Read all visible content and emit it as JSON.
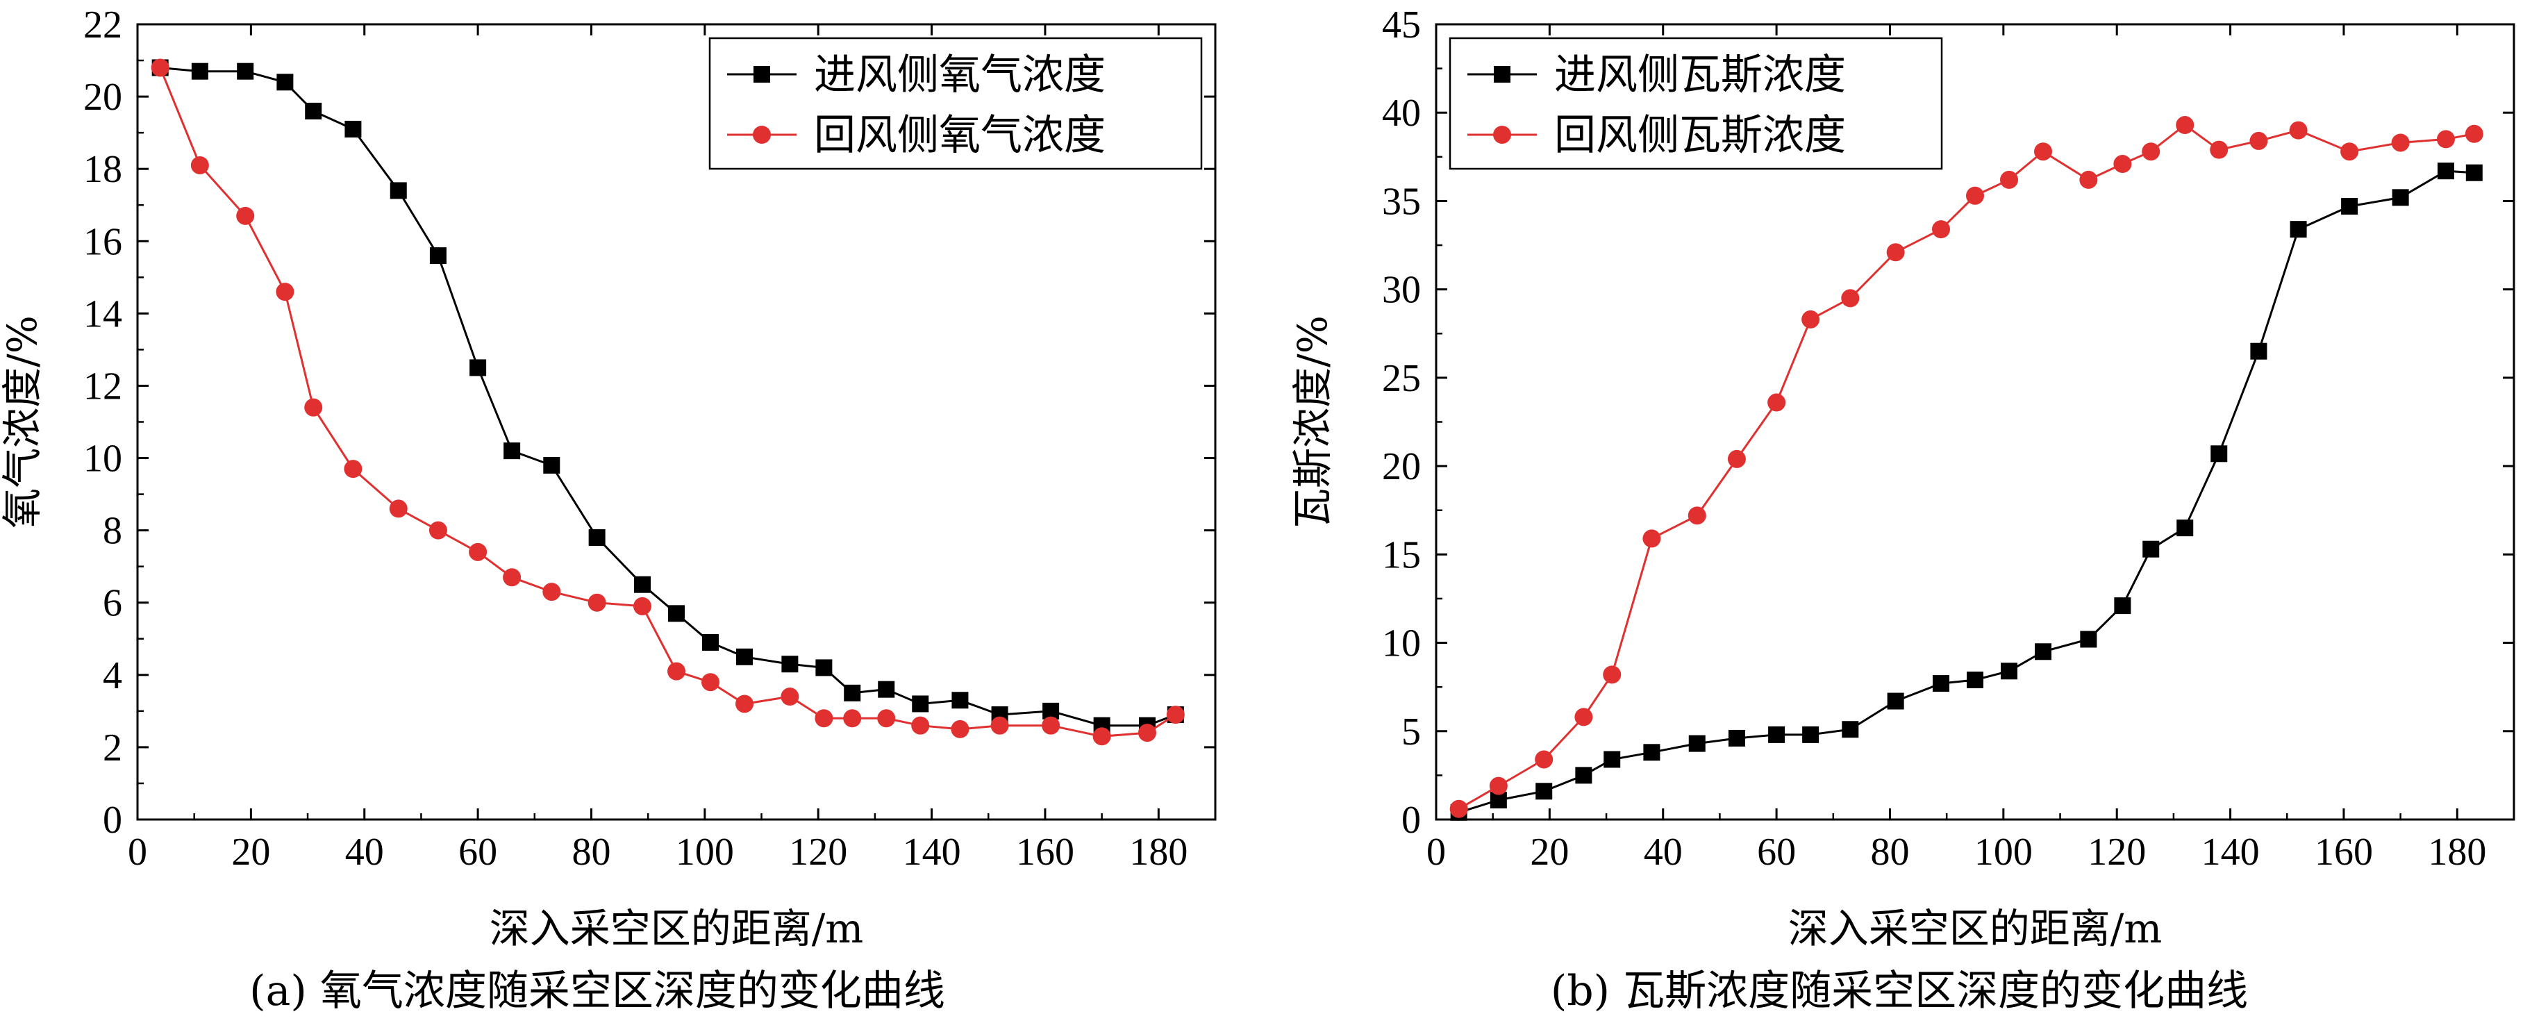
{
  "chart_data": [
    {
      "type": "line",
      "xlabel": "深入采空区的距离/m",
      "ylabel": "氧气浓度/%",
      "caption": "(a) 氧气浓度随采空区深度的变化曲线",
      "xlim": [
        0,
        190
      ],
      "ylim": [
        0,
        22
      ],
      "xticks": [
        0,
        20,
        40,
        60,
        80,
        100,
        120,
        140,
        160,
        180
      ],
      "yticks": [
        0,
        2,
        4,
        6,
        8,
        10,
        12,
        14,
        16,
        18,
        20,
        22
      ],
      "legend_position": "top-right",
      "series": [
        {
          "name": "进风侧氧气浓度",
          "color": "#000000",
          "marker": "square",
          "x": [
            4,
            11,
            19,
            26,
            31,
            38,
            46,
            53,
            60,
            66,
            73,
            81,
            89,
            95,
            101,
            107,
            115,
            121,
            126,
            132,
            138,
            145,
            152,
            161,
            170,
            178,
            183
          ],
          "y": [
            20.8,
            20.7,
            20.7,
            20.4,
            19.6,
            19.1,
            17.4,
            15.6,
            12.5,
            10.2,
            9.8,
            7.8,
            6.5,
            5.7,
            4.9,
            4.5,
            4.3,
            4.2,
            3.5,
            3.6,
            3.2,
            3.3,
            2.9,
            3.0,
            2.6,
            2.6,
            2.9
          ]
        },
        {
          "name": "回风侧氧气浓度",
          "color": "#e03030",
          "marker": "circle",
          "x": [
            4,
            11,
            19,
            26,
            31,
            38,
            46,
            53,
            60,
            66,
            73,
            81,
            89,
            95,
            101,
            107,
            115,
            121,
            126,
            132,
            138,
            145,
            152,
            161,
            170,
            178,
            183
          ],
          "y": [
            20.8,
            18.1,
            16.7,
            14.6,
            11.4,
            9.7,
            8.6,
            8.0,
            7.4,
            6.7,
            6.3,
            6.0,
            5.9,
            4.1,
            3.8,
            3.2,
            3.4,
            2.8,
            2.8,
            2.8,
            2.6,
            2.5,
            2.6,
            2.6,
            2.3,
            2.4,
            2.9
          ]
        }
      ]
    },
    {
      "type": "line",
      "xlabel": "深入采空区的距离/m",
      "ylabel": "瓦斯浓度/%",
      "caption": "(b) 瓦斯浓度随采空区深度的变化曲线",
      "xlim": [
        0,
        190
      ],
      "ylim": [
        0,
        45
      ],
      "xticks": [
        0,
        20,
        40,
        60,
        80,
        100,
        120,
        140,
        160,
        180
      ],
      "yticks": [
        0,
        5,
        10,
        15,
        20,
        25,
        30,
        35,
        40,
        45
      ],
      "legend_position": "top-left",
      "series": [
        {
          "name": "进风侧瓦斯浓度",
          "color": "#000000",
          "marker": "square",
          "x": [
            4,
            11,
            19,
            26,
            31,
            38,
            46,
            53,
            60,
            66,
            73,
            81,
            89,
            95,
            101,
            107,
            115,
            121,
            126,
            132,
            138,
            145,
            152,
            161,
            170,
            178,
            183
          ],
          "y": [
            0.4,
            1.1,
            1.6,
            2.5,
            3.4,
            3.8,
            4.3,
            4.6,
            4.8,
            4.8,
            5.1,
            6.7,
            7.7,
            7.9,
            8.4,
            9.5,
            10.2,
            12.1,
            15.3,
            16.5,
            20.7,
            26.5,
            33.4,
            34.7,
            35.2,
            36.7,
            36.6
          ]
        },
        {
          "name": "回风侧瓦斯浓度",
          "color": "#e03030",
          "marker": "circle",
          "x": [
            4,
            11,
            19,
            26,
            31,
            38,
            46,
            53,
            60,
            66,
            73,
            81,
            89,
            95,
            101,
            107,
            115,
            121,
            126,
            132,
            138,
            145,
            152,
            161,
            170,
            178,
            183
          ],
          "y": [
            0.6,
            1.9,
            3.4,
            5.8,
            8.2,
            15.9,
            17.2,
            20.4,
            23.6,
            28.3,
            29.5,
            32.1,
            33.4,
            35.3,
            36.2,
            37.8,
            36.2,
            37.1,
            37.8,
            39.3,
            37.9,
            38.4,
            39.0,
            37.8,
            38.3,
            38.5,
            38.8
          ]
        }
      ]
    }
  ]
}
